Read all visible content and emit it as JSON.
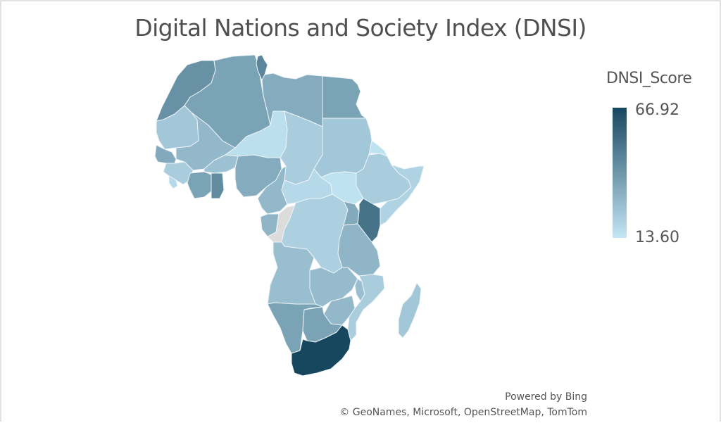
{
  "title": "Digital Nations and Society Index (DNSI)",
  "legend": {
    "title": "DNSI_Score",
    "max_label": "66.92",
    "min_label": "13.60",
    "max": 66.92,
    "min": 13.6,
    "color_max": "#17475f",
    "color_min": "#c4e6f5"
  },
  "no_data_color": "#dcdcdc",
  "credits": {
    "powered_by": "Powered by Bing",
    "attribution": "© GeoNames, Microsoft, OpenStreetMap, TomTom"
  },
  "regions": [
    {
      "name": "morocco",
      "score": 42
    },
    {
      "name": "algeria",
      "score": 36
    },
    {
      "name": "tunisia",
      "score": 46
    },
    {
      "name": "libya",
      "score": 33
    },
    {
      "name": "egypt",
      "score": 36
    },
    {
      "name": "mauritania",
      "score": 24
    },
    {
      "name": "mali",
      "score": 29
    },
    {
      "name": "niger",
      "score": 16
    },
    {
      "name": "chad",
      "score": 22
    },
    {
      "name": "sudan",
      "score": 24
    },
    {
      "name": "eritrea",
      "score": 15
    },
    {
      "name": "ethiopia",
      "score": 22
    },
    {
      "name": "somalia",
      "score": 20
    },
    {
      "name": "senegal",
      "score": 34
    },
    {
      "name": "guinea",
      "score": 22
    },
    {
      "name": "sierra-leone",
      "score": 18
    },
    {
      "name": "cote-divoire",
      "score": 36
    },
    {
      "name": "burkina-faso",
      "score": 26
    },
    {
      "name": "ghana",
      "score": 44
    },
    {
      "name": "nigeria",
      "score": 33
    },
    {
      "name": "cameroon",
      "score": 29
    },
    {
      "name": "car",
      "score": 18
    },
    {
      "name": "south-sudan",
      "score": 15
    },
    {
      "name": "gabon",
      "score": 30
    },
    {
      "name": "congo",
      "score": null
    },
    {
      "name": "drc",
      "score": 21
    },
    {
      "name": "uganda",
      "score": 34
    },
    {
      "name": "kenya",
      "score": 52
    },
    {
      "name": "tanzania",
      "score": 30
    },
    {
      "name": "angola",
      "score": 27
    },
    {
      "name": "zambia",
      "score": 28
    },
    {
      "name": "malawi",
      "score": 27
    },
    {
      "name": "mozambique",
      "score": 22
    },
    {
      "name": "zimbabwe",
      "score": 29
    },
    {
      "name": "namibia",
      "score": 36
    },
    {
      "name": "botswana",
      "score": 36
    },
    {
      "name": "south-africa",
      "score": 66.92
    },
    {
      "name": "madagascar",
      "score": 24
    }
  ]
}
